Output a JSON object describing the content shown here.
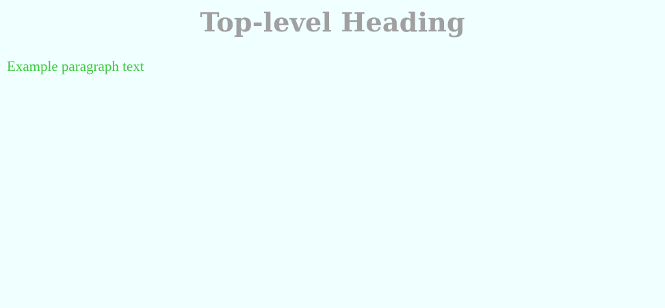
{
  "heading": {
    "text": "Top-level Heading",
    "color": "#a0a0a0"
  },
  "paragraph": {
    "text": "Example paragraph text",
    "color": "#3cc83c"
  },
  "page": {
    "background": "#f0ffff"
  }
}
